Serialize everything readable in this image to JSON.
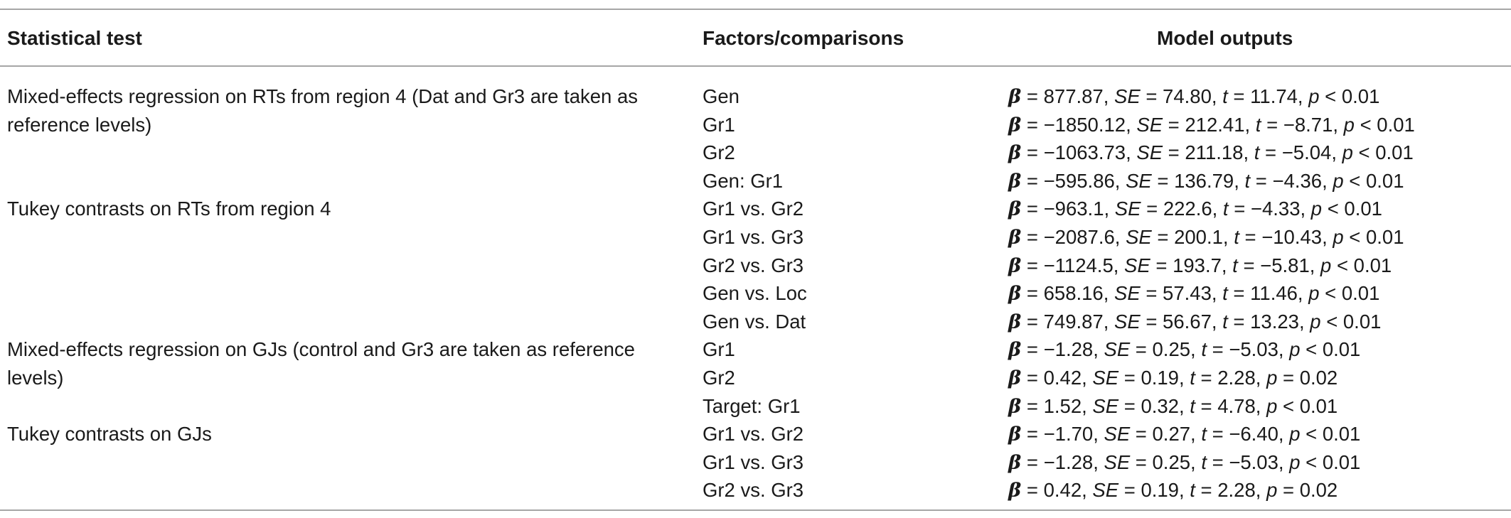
{
  "table": {
    "headers": {
      "test": "Statistical test",
      "factor": "Factors/comparisons",
      "output": "Model outputs"
    },
    "rows": [
      {
        "test": "Mixed-effects regression on RTs from region 4 (Dat and Gr3 are taken as reference levels)",
        "factor": "Gen",
        "beta": "877.87",
        "se": "74.80",
        "t": "11.74",
        "p_op": "<",
        "p": "0.01"
      },
      {
        "test": "",
        "factor": "Gr1",
        "beta": "−1850.12",
        "se": "212.41",
        "t": "−8.71",
        "p_op": "<",
        "p": "0.01"
      },
      {
        "test": "",
        "factor": "Gr2",
        "beta": "−1063.73",
        "se": "211.18",
        "t": "−5.04",
        "p_op": "<",
        "p": "0.01"
      },
      {
        "test": "",
        "factor": "Gen: Gr1",
        "beta": "−595.86",
        "se": "136.79",
        "t": "−4.36",
        "p_op": "<",
        "p": "0.01"
      },
      {
        "test": "Tukey contrasts on RTs from region 4",
        "factor": "Gr1 vs. Gr2",
        "beta": "−963.1",
        "se": "222.6",
        "t": "−4.33",
        "p_op": "<",
        "p": "0.01"
      },
      {
        "test": "",
        "factor": "Gr1 vs. Gr3",
        "beta": "−2087.6",
        "se": "200.1",
        "t": "−10.43",
        "p_op": "<",
        "p": "0.01"
      },
      {
        "test": "",
        "factor": "Gr2 vs. Gr3",
        "beta": "−1124.5",
        "se": "193.7",
        "t": "−5.81",
        "p_op": "<",
        "p": "0.01"
      },
      {
        "test": "",
        "factor": "Gen vs. Loc",
        "beta": "658.16",
        "se": "57.43",
        "t": "11.46",
        "p_op": "<",
        "p": "0.01"
      },
      {
        "test": "",
        "factor": "Gen vs. Dat",
        "beta": "749.87",
        "se": "56.67",
        "t": "13.23",
        "p_op": "<",
        "p": "0.01"
      },
      {
        "test": "Mixed-effects regression on GJs (control and Gr3 are taken as reference levels)",
        "factor": "Gr1",
        "beta": "−1.28",
        "se": "0.25",
        "t": "−5.03",
        "p_op": "<",
        "p": "0.01"
      },
      {
        "test": "",
        "factor": "Gr2",
        "beta": "0.42",
        "se": "0.19",
        "t": "2.28",
        "p_op": "=",
        "p": "0.02"
      },
      {
        "test": "",
        "factor": "Target: Gr1",
        "beta": "1.52",
        "se": "0.32",
        "t": "4.78",
        "p_op": "<",
        "p": "0.01"
      },
      {
        "test": "Tukey contrasts on GJs",
        "factor": "Gr1 vs. Gr2",
        "beta": "−1.70",
        "se": "0.27",
        "t": "−6.40",
        "p_op": "<",
        "p": "0.01"
      },
      {
        "test": "",
        "factor": "Gr1 vs. Gr3",
        "beta": "−1.28",
        "se": "0.25",
        "t": "−5.03",
        "p_op": "<",
        "p": "0.01"
      },
      {
        "test": "",
        "factor": "Gr2 vs. Gr3",
        "beta": "0.42",
        "se": "0.19",
        "t": "2.28",
        "p_op": "=",
        "p": "0.02"
      }
    ]
  }
}
